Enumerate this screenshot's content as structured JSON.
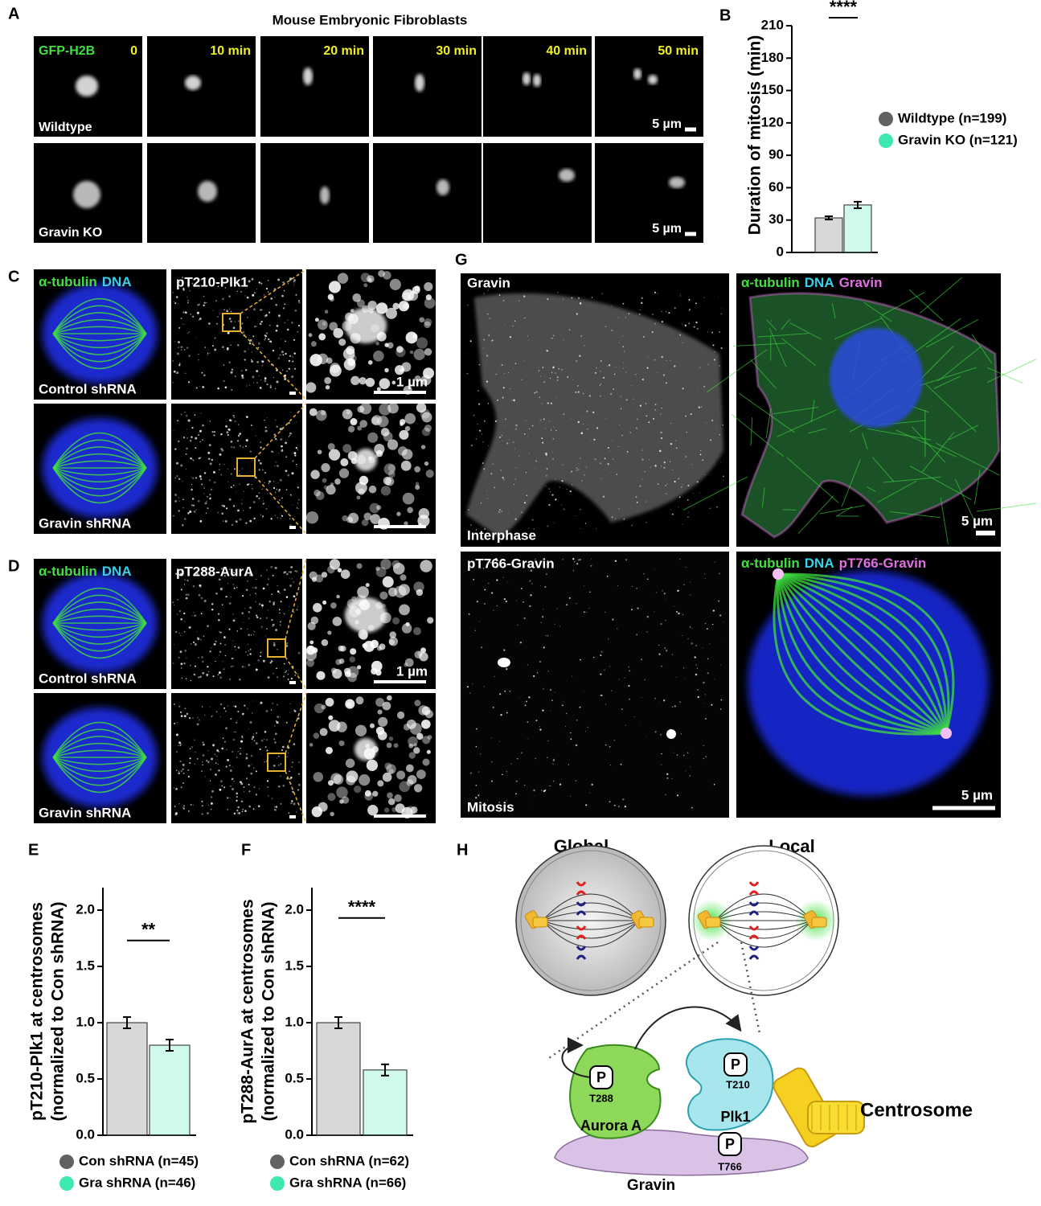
{
  "panels": {
    "A": {
      "letter": "A",
      "title": "Mouse Embryonic Fibroblasts",
      "channel": "GFP-H2B",
      "times": [
        "0",
        "10 min",
        "20 min",
        "30 min",
        "40 min",
        "50 min"
      ],
      "rows": [
        "Wildtype",
        "Gravin KO"
      ],
      "scale": "5 µm"
    },
    "C": {
      "letter": "C",
      "channels": [
        "α-tubulin",
        "DNA"
      ],
      "marker": "pT210-Plk1",
      "rows": [
        "Control shRNA",
        "Gravin shRNA"
      ],
      "scale": "1 µm"
    },
    "D": {
      "letter": "D",
      "channels": [
        "α-tubulin",
        "DNA"
      ],
      "marker": "pT288-AurA",
      "rows": [
        "Control shRNA",
        "Gravin shRNA"
      ],
      "scale": "1 µm"
    },
    "G": {
      "letter": "G",
      "top": {
        "single": "Gravin",
        "channels": [
          "α-tubulin",
          "DNA",
          "Gravin"
        ],
        "phase": "Interphase",
        "scale": "5 µm"
      },
      "bottom": {
        "single": "pT766-Gravin",
        "channels": [
          "α-tubulin",
          "DNA",
          "pT766-Gravin"
        ],
        "phase": "Mitosis",
        "scale": "5 µm"
      }
    },
    "H": {
      "letter": "H",
      "global": "Global",
      "local": "Local",
      "aurora": {
        "p": "P",
        "site": "T288",
        "name": "Aurora A"
      },
      "plk1": {
        "p": "P",
        "site": "T210",
        "name": "Plk1"
      },
      "gravin": {
        "p": "P",
        "site": "T766",
        "name": "Gravin"
      },
      "centrosome": "Centrosome"
    }
  },
  "chart_data": [
    {
      "type": "bar",
      "letter": "B",
      "ylabel": [
        "Duration of mitosis (min)"
      ],
      "categories": [
        null
      ],
      "ylim": [
        0,
        210
      ],
      "yticks": [
        0,
        30,
        60,
        90,
        120,
        150,
        180,
        210
      ],
      "significance": "****",
      "series": [
        {
          "name": "Wildtype (n=199)",
          "color": "#626262",
          "values": [
            32
          ],
          "errors": [
            1.5
          ]
        },
        {
          "name": "Gravin KO (n=121)",
          "color": "#3ee8b0",
          "values": [
            44
          ],
          "errors": [
            3
          ]
        }
      ]
    },
    {
      "type": "bar",
      "letter": "E",
      "ylabel": [
        "pT210-Plk1 at centrosomes",
        "(normalized to Con shRNA)"
      ],
      "categories": [
        null
      ],
      "ylim": [
        0,
        2.2
      ],
      "yticks": [
        {
          "value": 0,
          "label": "0.0"
        },
        0.5,
        {
          "value": 1,
          "label": "1.0"
        },
        1.5,
        {
          "value": 2,
          "label": "2.0"
        }
      ],
      "significance": "**",
      "series": [
        {
          "name": "Con shRNA (n=45)",
          "color": "#626262",
          "values": [
            1.0
          ],
          "errors": [
            0.05
          ]
        },
        {
          "name": "Gra shRNA (n=46)",
          "color": "#3ee8b0",
          "values": [
            0.8
          ],
          "errors": [
            0.05
          ]
        }
      ]
    },
    {
      "type": "bar",
      "letter": "F",
      "ylabel": [
        "pT288-AurA at centrosomes",
        "(normalized to Con shRNA)"
      ],
      "categories": [
        null
      ],
      "ylim": [
        0,
        2.2
      ],
      "yticks": [
        {
          "value": 0,
          "label": "0.0"
        },
        0.5,
        {
          "value": 1,
          "label": "1.0"
        },
        1.5,
        {
          "value": 2,
          "label": "2.0"
        }
      ],
      "significance": "****",
      "series": [
        {
          "name": "Con shRNA (n=62)",
          "color": "#626262",
          "values": [
            1.0
          ],
          "errors": [
            0.05
          ]
        },
        {
          "name": "Gra shRNA (n=66)",
          "color": "#3ee8b0",
          "values": [
            0.58
          ],
          "errors": [
            0.05
          ]
        }
      ]
    }
  ]
}
